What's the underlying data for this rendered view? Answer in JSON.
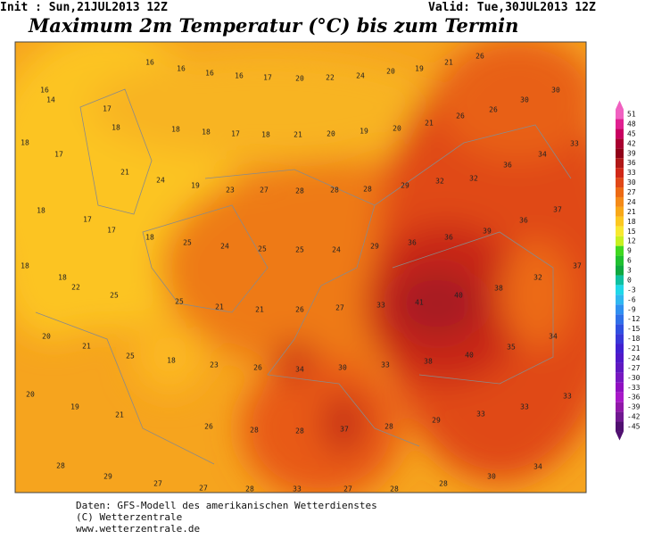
{
  "header": {
    "init": "Init : Sun,21JUL2013 12Z",
    "valid": "Valid: Tue,30JUL2013 12Z",
    "title": "Maximum 2m Temperatur (°C) bis zum Termin"
  },
  "footer": {
    "line1": "Daten: GFS-Modell des amerikanischen Wetterdienstes",
    "line2": "(C) Wetterzentrale",
    "line3": "www.wetterzentrale.de"
  },
  "map_labels": [
    16,
    16,
    16,
    16,
    17,
    20,
    22,
    24,
    20,
    19,
    21,
    26,
    16,
    14,
    17,
    26,
    26,
    30,
    30,
    18,
    17,
    18,
    18,
    18,
    17,
    18,
    21,
    20,
    19,
    20,
    21,
    36,
    34,
    33,
    21,
    24,
    19,
    23,
    27,
    28,
    28,
    28,
    29,
    32,
    32,
    18,
    17,
    37,
    36,
    39,
    36,
    36,
    17,
    18,
    25,
    24,
    25,
    25,
    24,
    29,
    18,
    37,
    32,
    18,
    22,
    25,
    25,
    21,
    21,
    26,
    27,
    33,
    41,
    40,
    38,
    20,
    21,
    25,
    18,
    23,
    26,
    34,
    30,
    33,
    38,
    40,
    35,
    34,
    20,
    19,
    21,
    26,
    28,
    28,
    37,
    28,
    29,
    33,
    33,
    33,
    28,
    29,
    27,
    27,
    28,
    33,
    27,
    28,
    28,
    30,
    34
  ],
  "colorbar": {
    "labels": [
      51,
      48,
      45,
      42,
      39,
      36,
      33,
      30,
      27,
      24,
      21,
      18,
      15,
      12,
      9,
      6,
      3,
      0,
      -3,
      -6,
      -9,
      -12,
      -15,
      -18,
      -21,
      -24,
      -27,
      -30,
      -33,
      -36,
      -39,
      -42,
      -45
    ],
    "colors": [
      "#f060c0",
      "#e02090",
      "#c80060",
      "#a80030",
      "#900018",
      "#b01818",
      "#d02818",
      "#e04818",
      "#ec6a14",
      "#f48a18",
      "#f8a818",
      "#fcc820",
      "#f8e830",
      "#c8f020",
      "#40d820",
      "#20c030",
      "#10a840",
      "#10c0a0",
      "#20d8e8",
      "#30b8f0",
      "#3090f0",
      "#3070e8",
      "#3050e0",
      "#3838d8",
      "#4020d0",
      "#5018c8",
      "#6018c0",
      "#7818c0",
      "#9010c0",
      "#a818c8",
      "#9018a8",
      "#701890",
      "#501070"
    ]
  }
}
